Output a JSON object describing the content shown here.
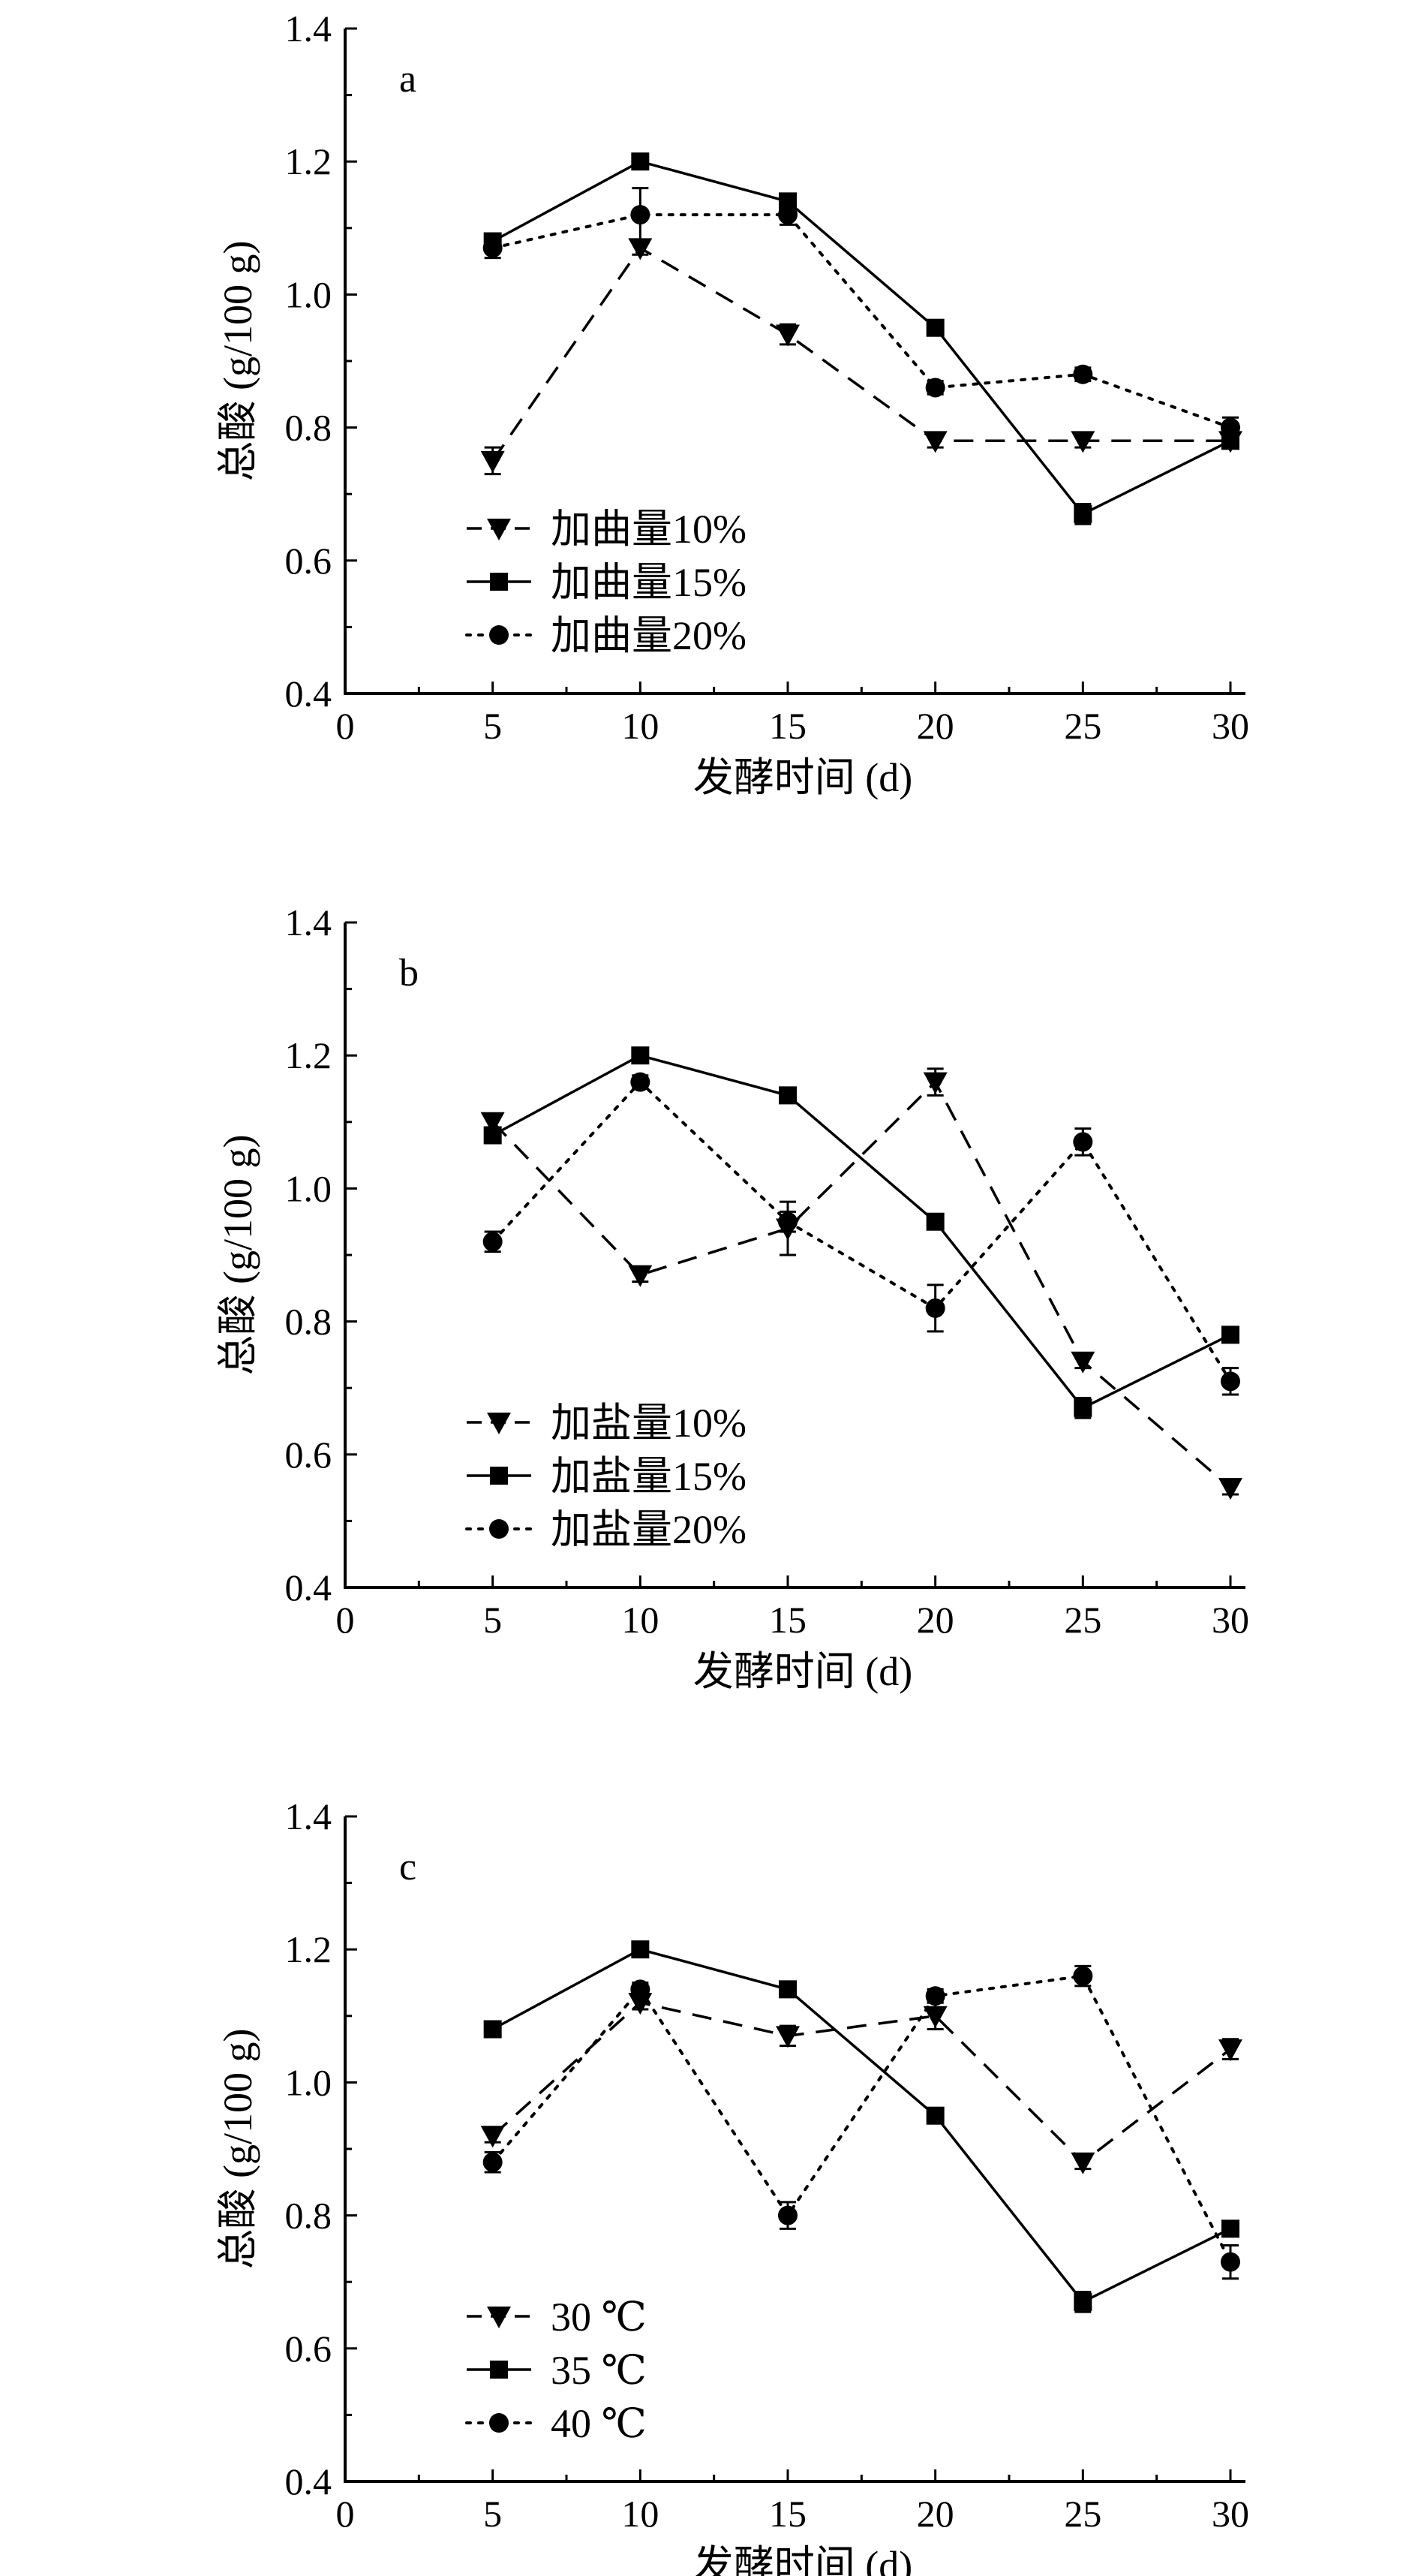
{
  "chart_data": [
    {
      "type": "line",
      "panel_label": "a",
      "xlabel": "发酵时间 (d)",
      "ylabel": "总酸 (g/100 g)",
      "xlim": [
        0,
        30
      ],
      "ylim": [
        0.4,
        1.4
      ],
      "xticks": [
        "0",
        "5",
        "10",
        "15",
        "20",
        "25",
        "30"
      ],
      "yticks": [
        "0.4",
        "0.6",
        "0.8",
        "1.0",
        "1.2",
        "1.4"
      ],
      "legend_position": "bottom-left",
      "x": [
        5,
        10,
        15,
        20,
        25,
        30
      ],
      "series": [
        {
          "name": "加曲量10%",
          "values": [
            0.75,
            1.07,
            0.94,
            0.78,
            0.78,
            0.78
          ],
          "marker": "triangle-down",
          "line": "dashed",
          "errors": [
            0.02,
            0.01,
            0.015,
            0.01,
            0.01,
            0.01
          ]
        },
        {
          "name": "加曲量15%",
          "values": [
            1.08,
            1.2,
            1.14,
            0.95,
            0.67,
            0.78
          ],
          "marker": "square",
          "line": "solid",
          "errors": [
            0.01,
            0.01,
            0.01,
            0.01,
            0.015,
            0.01
          ]
        },
        {
          "name": "加曲量20%",
          "values": [
            1.07,
            1.12,
            1.12,
            0.86,
            0.88,
            0.8
          ],
          "marker": "circle",
          "line": "dotted",
          "errors": [
            0.015,
            0.04,
            0.015,
            0.01,
            0.01,
            0.015
          ]
        }
      ]
    },
    {
      "type": "line",
      "panel_label": "b",
      "xlabel": "发酵时间 (d)",
      "ylabel": "总酸 (g/100 g)",
      "xlim": [
        0,
        30
      ],
      "ylim": [
        0.4,
        1.4
      ],
      "xticks": [
        "0",
        "5",
        "10",
        "15",
        "20",
        "25",
        "30"
      ],
      "yticks": [
        "0.4",
        "0.6",
        "0.8",
        "1.0",
        "1.2",
        "1.4"
      ],
      "legend_position": "bottom-left",
      "x": [
        5,
        10,
        15,
        20,
        25,
        30
      ],
      "series": [
        {
          "name": "加盐量10%",
          "values": [
            1.1,
            0.87,
            0.94,
            1.16,
            0.74,
            0.55
          ],
          "marker": "triangle-down",
          "line": "dashed",
          "errors": [
            0.01,
            0.01,
            0.04,
            0.02,
            0.01,
            0.01
          ]
        },
        {
          "name": "加盐量15%",
          "values": [
            1.08,
            1.2,
            1.14,
            0.95,
            0.67,
            0.78
          ],
          "marker": "square",
          "line": "solid",
          "errors": [
            0.01,
            0.01,
            0.01,
            0.01,
            0.015,
            0.01
          ]
        },
        {
          "name": "加盐量20%",
          "values": [
            0.92,
            1.16,
            0.95,
            0.82,
            1.07,
            0.71
          ],
          "marker": "circle",
          "line": "dotted",
          "errors": [
            0.015,
            0.01,
            0.015,
            0.035,
            0.02,
            0.02
          ]
        }
      ]
    },
    {
      "type": "line",
      "panel_label": "c",
      "xlabel": "发酵时间 (d)",
      "ylabel": "总酸 (g/100 g)",
      "xlim": [
        0,
        30
      ],
      "ylim": [
        0.4,
        1.4
      ],
      "xticks": [
        "0",
        "5",
        "10",
        "15",
        "20",
        "25",
        "30"
      ],
      "yticks": [
        "0.4",
        "0.6",
        "0.8",
        "1.0",
        "1.2",
        "1.4"
      ],
      "legend_position": "bottom-left",
      "x": [
        5,
        10,
        15,
        20,
        25,
        30
      ],
      "series": [
        {
          "name": "30 ℃",
          "values": [
            0.92,
            1.12,
            1.07,
            1.1,
            0.88,
            1.05
          ],
          "marker": "triangle-down",
          "line": "dashed",
          "errors": [
            0.01,
            0.01,
            0.015,
            0.02,
            0.01,
            0.015
          ]
        },
        {
          "name": "35 ℃",
          "values": [
            1.08,
            1.2,
            1.14,
            0.95,
            0.67,
            0.78
          ],
          "marker": "square",
          "line": "solid",
          "errors": [
            0.01,
            0.01,
            0.01,
            0.01,
            0.015,
            0.01
          ]
        },
        {
          "name": "40 ℃",
          "values": [
            0.88,
            1.14,
            0.8,
            1.13,
            1.16,
            0.73
          ],
          "marker": "circle",
          "line": "dotted",
          "errors": [
            0.015,
            0.01,
            0.02,
            0.01,
            0.015,
            0.025
          ]
        }
      ]
    }
  ]
}
